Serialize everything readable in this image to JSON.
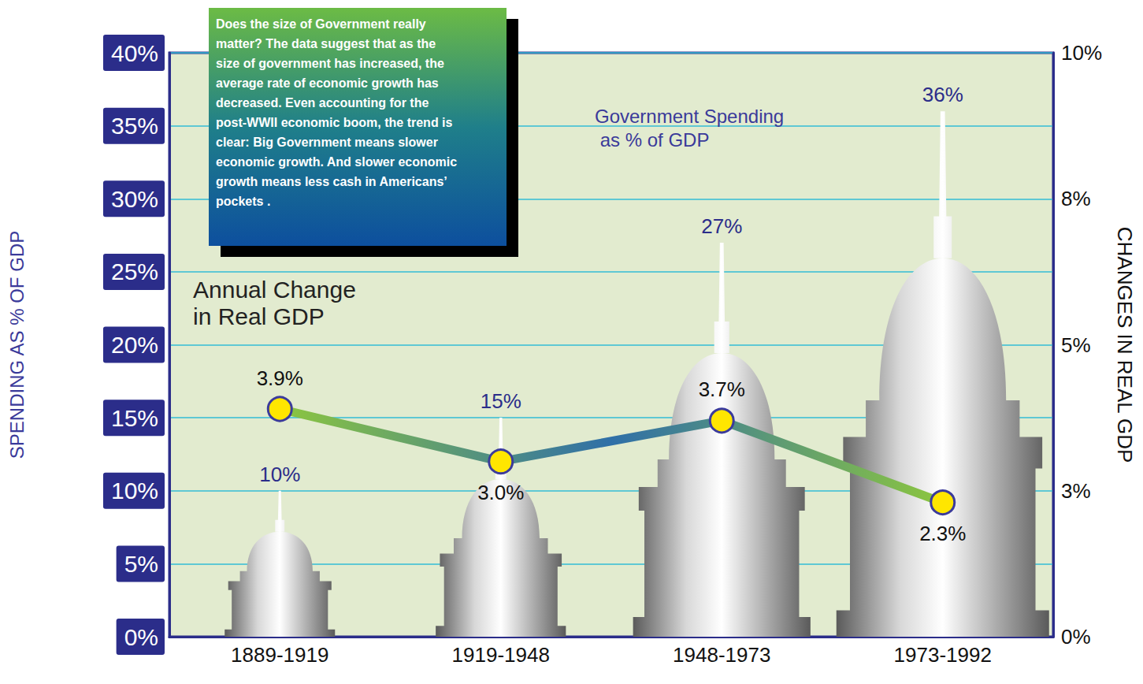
{
  "chart_data": {
    "type": "bar",
    "annotation": "Does the size of Government really matter? The data suggest that as the size of government has increased, the average rate of economic growth has decreased. Even accounting for the post-WWII economic boom, the trend is clear: Big Government means slower economic growth. And slower economic growth means less cash in Americans’ pockets .",
    "categories": [
      "1889-1919",
      "1919-1948",
      "1948-1973",
      "1973-1992"
    ],
    "series": [
      {
        "name": "Government Spending as % of GDP",
        "type": "bar",
        "color": "#5a5a5a",
        "values": [
          10,
          15,
          27,
          36
        ],
        "value_labels": [
          "10%",
          "15%",
          "27%",
          "36%"
        ]
      },
      {
        "name": "Annual Change in Real GDP",
        "type": "line",
        "axis": "y2",
        "color": "#2f6fa8",
        "marker": "circle",
        "values": [
          3.9,
          3.0,
          3.7,
          2.3
        ],
        "value_labels": [
          "3.9%",
          "3.0%",
          "3.7%",
          "2.3%"
        ]
      }
    ],
    "ylabel": "SPENDING AS % OF GDP",
    "y2label": "CHANGES IN REAL GDP",
    "ylim": [
      0,
      40
    ],
    "yticks": [
      {
        "value": 0,
        "label": "0%"
      },
      {
        "value": 5,
        "label": "5%"
      },
      {
        "value": 10,
        "label": "10%"
      },
      {
        "value": 15,
        "label": "15%"
      },
      {
        "value": 20,
        "label": "20%"
      },
      {
        "value": 25,
        "label": "25%"
      },
      {
        "value": 30,
        "label": "30%"
      },
      {
        "value": 35,
        "label": "35%"
      },
      {
        "value": 40,
        "label": "40%"
      }
    ],
    "y2lim": [
      0,
      10
    ],
    "y2ticks": [
      {
        "value": 0,
        "label": "0%"
      },
      {
        "value": 2.5,
        "label": "3%"
      },
      {
        "value": 5,
        "label": "5%"
      },
      {
        "value": 7.5,
        "label": "8%"
      },
      {
        "value": 10,
        "label": "10%"
      }
    ],
    "grid": true,
    "data_labels": true
  }
}
